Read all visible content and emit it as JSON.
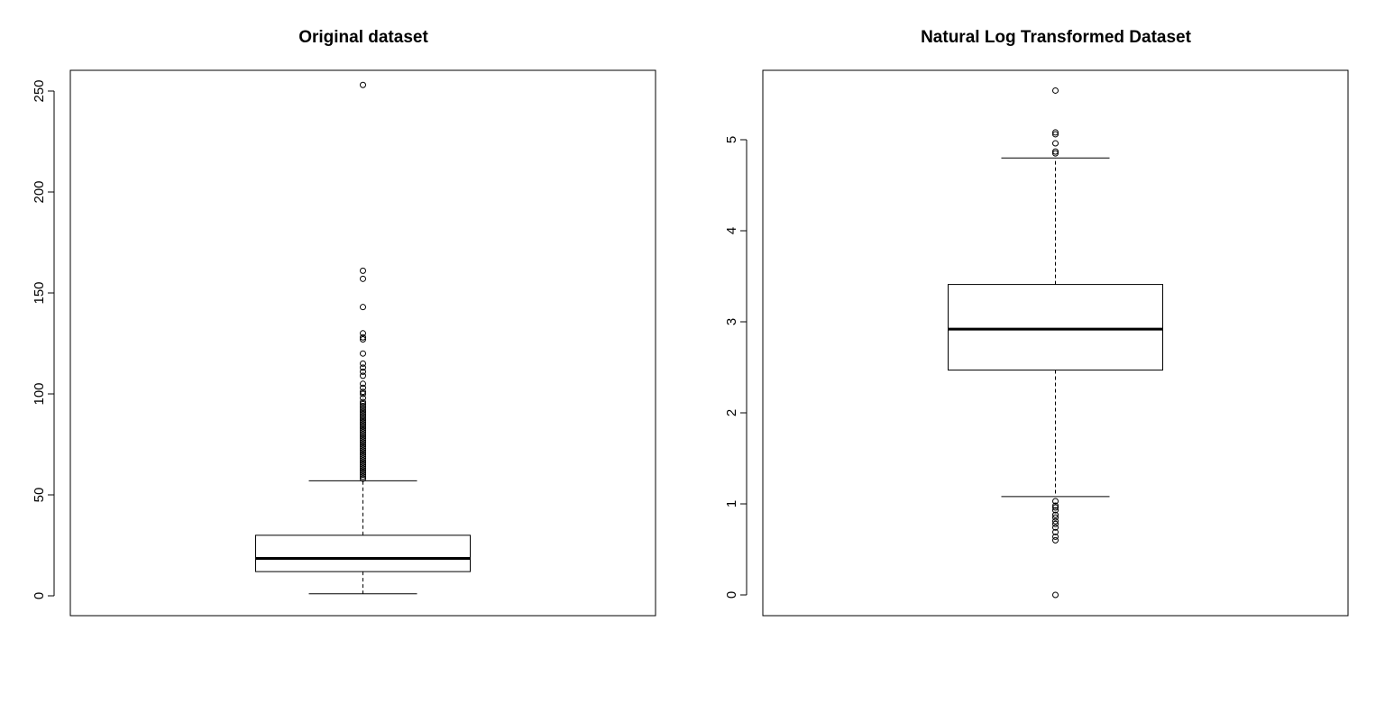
{
  "chart_data": [
    {
      "type": "boxplot",
      "title": "Original dataset",
      "xlabel": "",
      "ylabel": "",
      "ylim": [
        -10,
        263
      ],
      "yticks": [
        0,
        50,
        100,
        150,
        200,
        250
      ],
      "box": {
        "lower_whisker": 1,
        "q1": 12,
        "median": 18.5,
        "q3": 30,
        "upper_whisker": 57
      },
      "outliers": [
        58,
        59,
        60,
        61,
        62,
        63,
        64,
        65,
        66,
        67,
        68,
        69,
        70,
        71,
        72,
        73,
        74,
        75,
        76,
        77,
        78,
        79,
        80,
        81,
        82,
        83,
        84,
        85,
        86,
        87,
        88,
        89,
        90,
        91,
        92,
        93,
        94,
        95,
        96,
        98,
        100,
        101,
        103,
        105,
        109,
        111,
        113,
        115,
        120,
        127,
        128,
        130,
        143,
        157,
        161,
        253
      ],
      "grid": false
    },
    {
      "type": "boxplot",
      "title": "Natural Log Transformed Dataset",
      "xlabel": "",
      "ylabel": "",
      "ylim": [
        -0.2,
        5.8
      ],
      "yticks": [
        0,
        1,
        2,
        3,
        4,
        5
      ],
      "box": {
        "lower_whisker": 1.08,
        "q1": 2.47,
        "median": 2.92,
        "q3": 3.41,
        "upper_whisker": 4.8
      },
      "outliers": [
        0,
        0.6,
        0.64,
        0.69,
        0.74,
        0.78,
        0.81,
        0.85,
        0.88,
        0.93,
        0.96,
        0.98,
        1.03,
        4.85,
        4.87,
        4.96,
        5.06,
        5.08,
        5.54
      ],
      "grid": false
    }
  ]
}
